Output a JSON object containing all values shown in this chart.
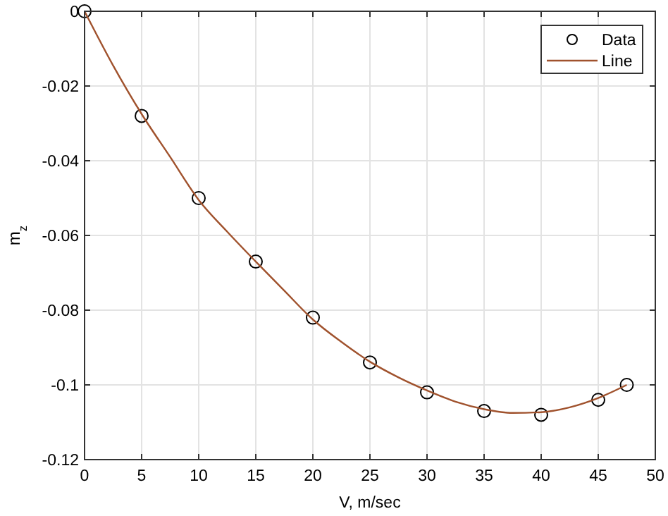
{
  "chart_data": {
    "type": "scatter",
    "xlabel": "V, m/sec",
    "ylabel": "m$_{z}$",
    "xlim": [
      0,
      50
    ],
    "ylim": [
      -0.12,
      0
    ],
    "xticks": [
      0,
      5,
      10,
      15,
      20,
      25,
      30,
      35,
      40,
      45,
      50
    ],
    "yticks": [
      -0.12,
      -0.1,
      -0.08,
      -0.06,
      -0.04,
      -0.02,
      0
    ],
    "grid": true,
    "legend": "top right",
    "series": [
      {
        "name": "Data",
        "marker": "circle",
        "color": "#000000",
        "x": [
          0,
          5,
          10,
          15,
          20,
          25,
          30,
          35,
          40,
          45,
          47.5
        ],
        "values": [
          0,
          -0.028,
          -0.05,
          -0.067,
          -0.082,
          -0.094,
          -0.102,
          -0.107,
          -0.108,
          -0.104,
          -0.1
        ]
      },
      {
        "name": "Line",
        "type": "line",
        "marker": "none",
        "line_style": "solid",
        "color": "#a0522d",
        "x": [
          0,
          2.5,
          5,
          7.5,
          10,
          12.5,
          15,
          17.5,
          20,
          22.5,
          25,
          27.5,
          30,
          32.5,
          35,
          37.5,
          40,
          42.5,
          45,
          47.5
        ],
        "values": [
          0,
          -0.0145,
          -0.0275,
          -0.039,
          -0.0505,
          -0.059,
          -0.067,
          -0.0748,
          -0.0825,
          -0.0885,
          -0.0938,
          -0.098,
          -0.1015,
          -0.1045,
          -0.1065,
          -0.1075,
          -0.1073,
          -0.106,
          -0.1035,
          -0.1
        ]
      }
    ]
  }
}
